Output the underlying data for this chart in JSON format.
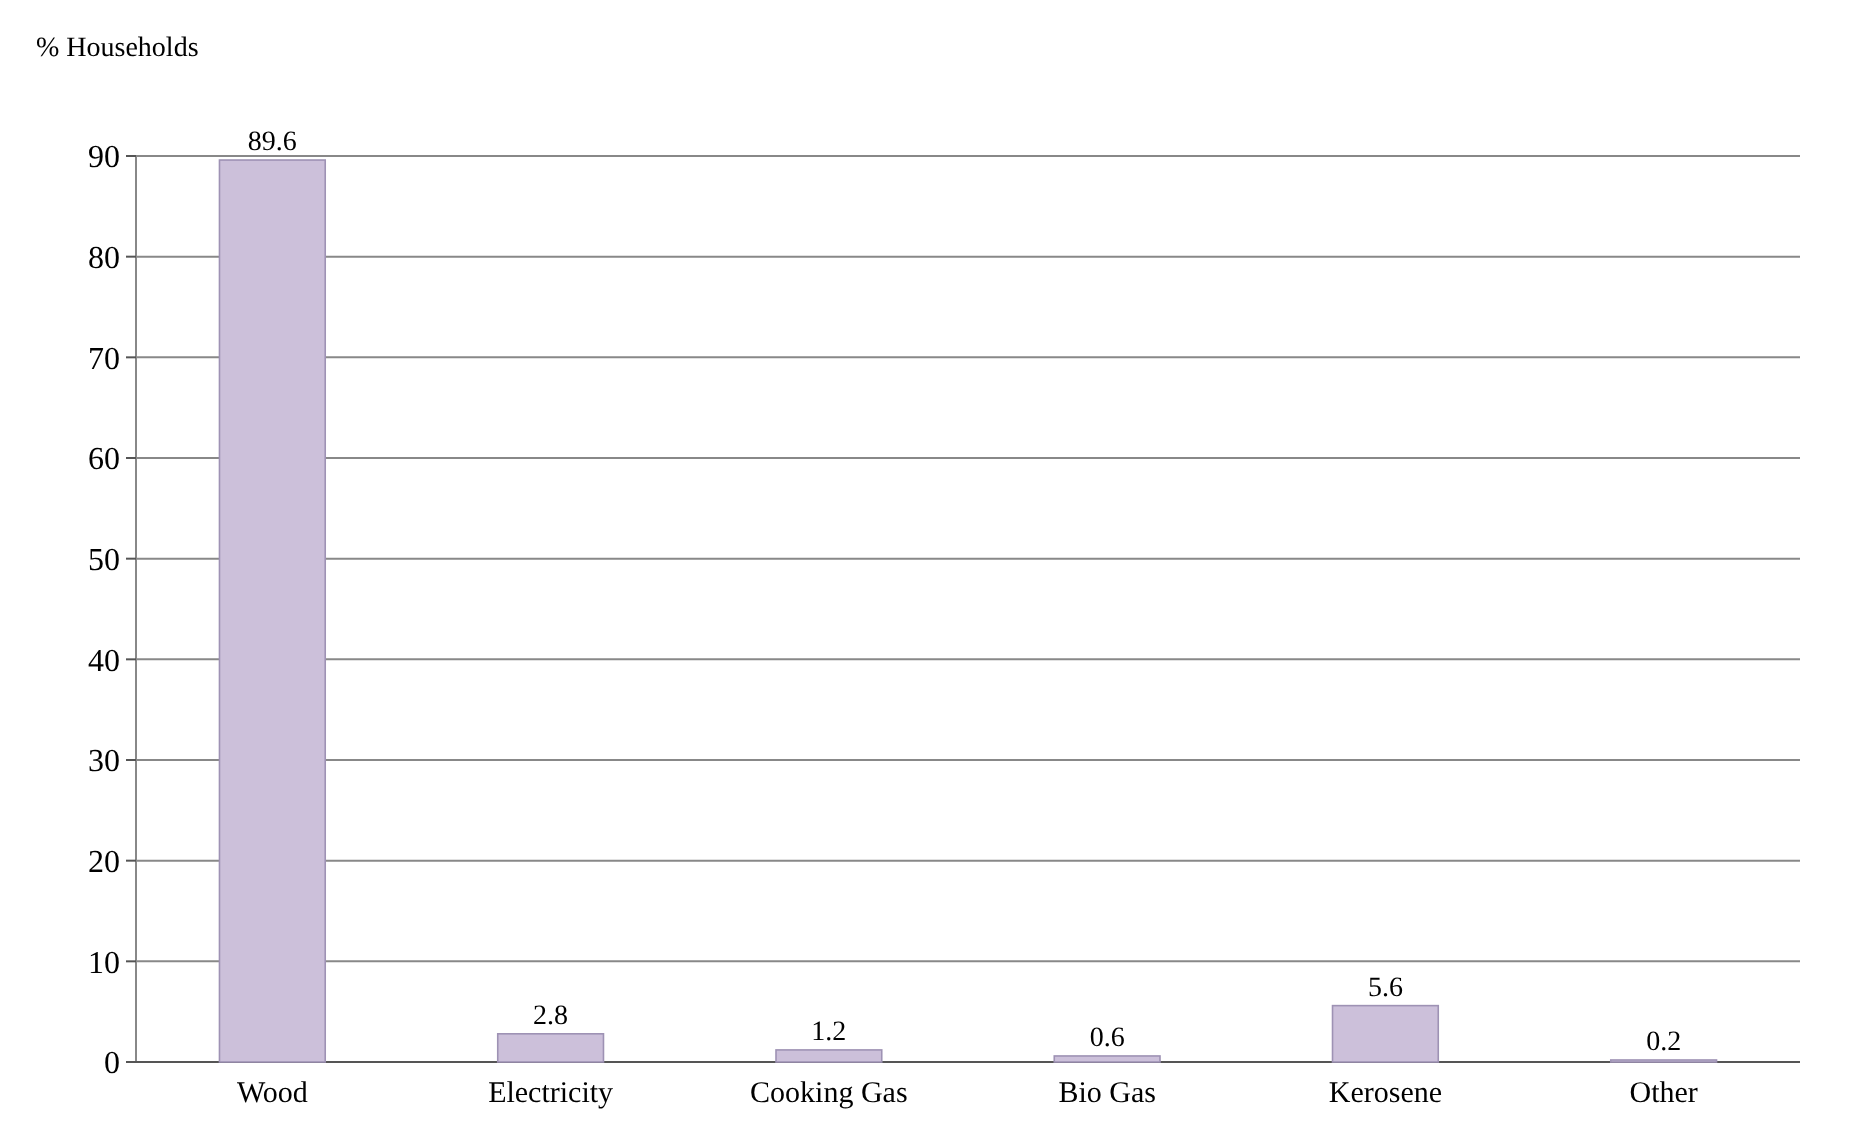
{
  "chart_data": {
    "type": "bar",
    "ylabel": "% Households",
    "categories": [
      "Wood",
      "Electricity",
      "Cooking Gas",
      "Bio Gas",
      "Kerosene",
      "Other"
    ],
    "values": [
      89.6,
      2.8,
      1.2,
      0.6,
      5.6,
      0.2
    ],
    "color": "#ccc0da",
    "ylim": [
      0,
      90
    ],
    "yticks": [
      0,
      10,
      20,
      30,
      40,
      50,
      60,
      70,
      80,
      90
    ],
    "grid": "y",
    "data_labels": true
  }
}
